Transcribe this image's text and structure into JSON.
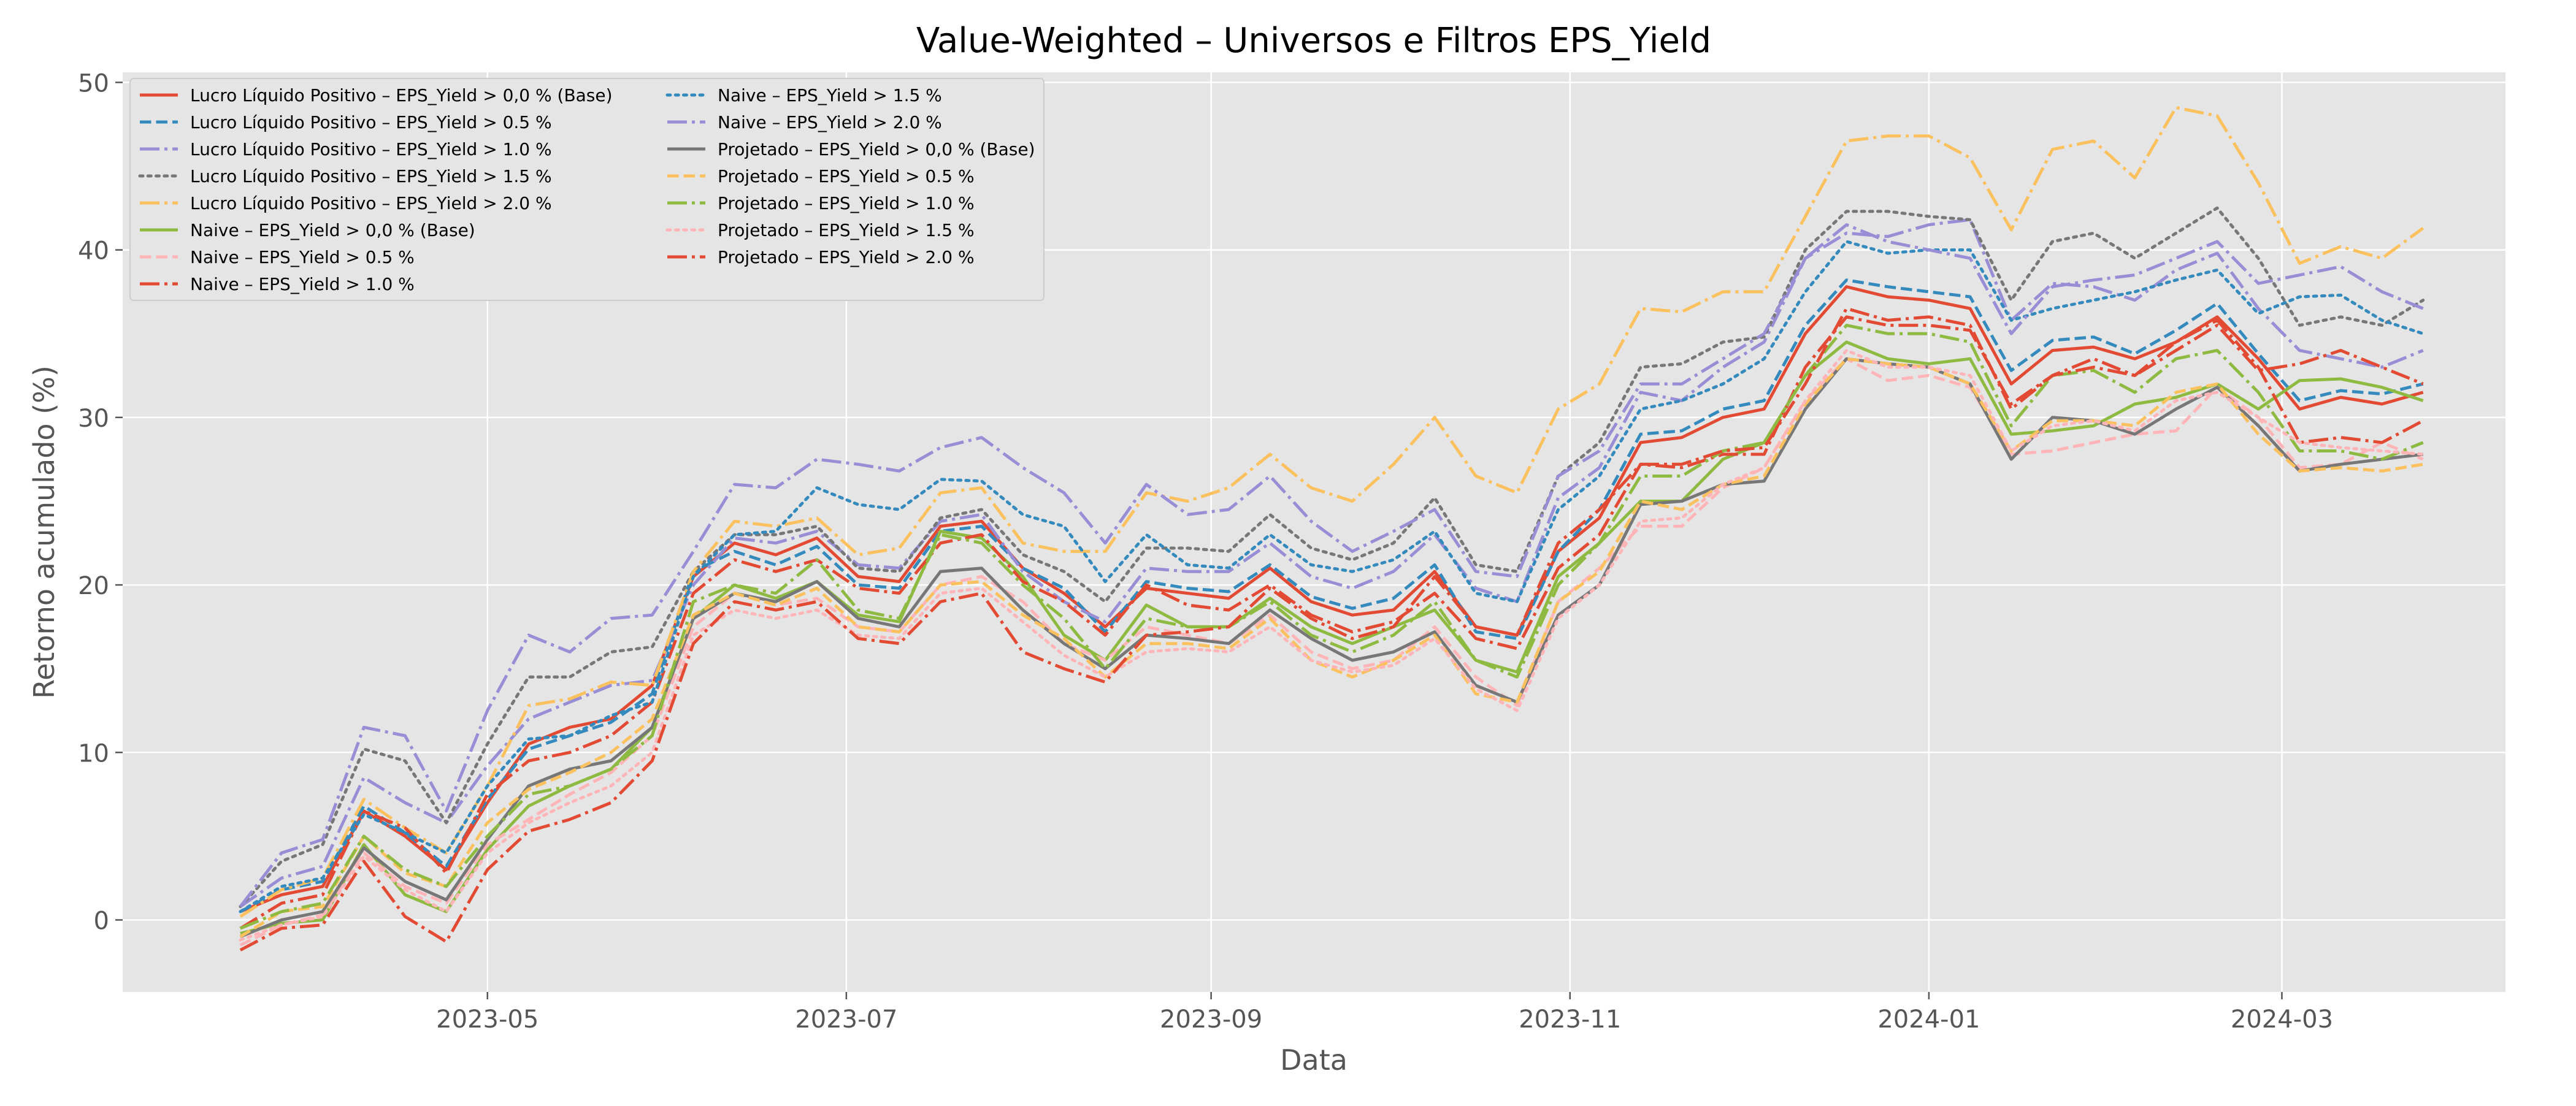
{
  "chart_data": {
    "type": "line",
    "title": "Value-Weighted – Universos e Filtros EPS_Yield",
    "xlabel": "Data",
    "ylabel": "Retorno acumulado (%)",
    "x_tick_labels": [
      "2023-05",
      "2023-07",
      "2023-09",
      "2023-11",
      "2024-01",
      "2024-03"
    ],
    "x_tick_dates": [
      "2023-05-01",
      "2023-07-01",
      "2023-09-01",
      "2023-11-01",
      "2024-01-01",
      "2024-03-01"
    ],
    "y_ticks": [
      0,
      10,
      20,
      30,
      40,
      50
    ],
    "xlim": [
      "2023-02-28",
      "2024-04-08"
    ],
    "ylim": [
      -4.3,
      50.6
    ],
    "grid": true,
    "legend_position": "upper-left",
    "legend_columns": 2,
    "x": [
      "2023-03-20",
      "2023-03-27",
      "2023-04-03",
      "2023-04-10",
      "2023-04-17",
      "2023-04-24",
      "2023-05-01",
      "2023-05-08",
      "2023-05-15",
      "2023-05-22",
      "2023-05-29",
      "2023-06-05",
      "2023-06-12",
      "2023-06-19",
      "2023-06-26",
      "2023-07-03",
      "2023-07-10",
      "2023-07-17",
      "2023-07-24",
      "2023-07-31",
      "2023-08-07",
      "2023-08-14",
      "2023-08-21",
      "2023-08-28",
      "2023-09-04",
      "2023-09-11",
      "2023-09-18",
      "2023-09-25",
      "2023-10-02",
      "2023-10-09",
      "2023-10-16",
      "2023-10-23",
      "2023-10-30",
      "2023-11-06",
      "2023-11-13",
      "2023-11-20",
      "2023-11-27",
      "2023-12-04",
      "2023-12-11",
      "2023-12-18",
      "2023-12-25",
      "2024-01-01",
      "2024-01-08",
      "2024-01-15",
      "2024-01-22",
      "2024-01-29",
      "2024-02-05",
      "2024-02-12",
      "2024-02-19",
      "2024-02-26",
      "2024-03-04",
      "2024-03-11",
      "2024-03-18",
      "2024-03-25"
    ],
    "series": [
      {
        "name": "Lucro Líquido Positivo – EPS_Yield > 0,0 % (Base)",
        "color": "#E24A33",
        "dash": "solid",
        "values": [
          0.5,
          1.5,
          2.0,
          6.5,
          5.0,
          3.0,
          7.0,
          10.5,
          11.5,
          12.0,
          14.0,
          20.5,
          22.5,
          21.8,
          22.8,
          20.5,
          20.2,
          23.5,
          23.8,
          21.0,
          19.5,
          17.5,
          19.8,
          19.5,
          19.2,
          21.0,
          19.0,
          18.2,
          18.5,
          20.8,
          17.5,
          17.0,
          22.0,
          24.0,
          28.5,
          28.8,
          30.0,
          30.5,
          35.0,
          37.8,
          37.2,
          37.0,
          36.5,
          32.0,
          34.0,
          34.2,
          33.5,
          34.5,
          36.0,
          33.5,
          30.5,
          31.2,
          30.8,
          31.5
        ]
      },
      {
        "name": "Lucro Líquido Positivo – EPS_Yield > 0.5 %",
        "color": "#348ABD",
        "dash": "dashed",
        "values": [
          0.5,
          1.8,
          2.3,
          6.8,
          5.2,
          3.2,
          7.2,
          10.2,
          11.0,
          11.8,
          13.5,
          20.8,
          22.0,
          21.2,
          22.3,
          20.0,
          19.8,
          23.2,
          23.5,
          21.0,
          19.8,
          17.2,
          20.2,
          19.8,
          19.6,
          21.2,
          19.3,
          18.6,
          19.2,
          21.2,
          17.2,
          16.8,
          22.0,
          24.5,
          29.0,
          29.2,
          30.5,
          31.0,
          35.5,
          38.2,
          37.8,
          37.5,
          37.2,
          32.8,
          34.6,
          34.8,
          33.8,
          35.2,
          36.8,
          33.8,
          31.0,
          31.6,
          31.4,
          32.0
        ]
      },
      {
        "name": "Lucro Líquido Positivo – EPS_Yield > 1.0 %",
        "color": "#988ED5",
        "dash": "dashdot",
        "values": [
          0.8,
          2.5,
          3.2,
          8.5,
          7.0,
          5.8,
          9.2,
          12.0,
          13.0,
          14.0,
          14.3,
          20.0,
          22.8,
          22.5,
          23.2,
          21.2,
          21.0,
          23.8,
          24.2,
          20.8,
          19.0,
          17.8,
          21.0,
          20.8,
          20.8,
          22.5,
          20.5,
          19.8,
          20.8,
          23.0,
          19.8,
          19.0,
          25.2,
          27.0,
          31.5,
          31.0,
          33.0,
          34.5,
          39.5,
          41.0,
          40.8,
          41.5,
          41.8,
          35.8,
          38.0,
          37.8,
          37.0,
          38.8,
          39.8,
          36.5,
          34.0,
          33.5,
          33.0,
          34.0
        ]
      },
      {
        "name": "Lucro Líquido Positivo – EPS_Yield > 1.5 %",
        "color": "#777777",
        "dash": "dotted",
        "values": [
          0.8,
          3.5,
          4.5,
          10.2,
          9.5,
          5.8,
          10.5,
          14.5,
          14.5,
          16.0,
          16.3,
          20.8,
          23.0,
          23.0,
          23.5,
          21.0,
          20.8,
          24.0,
          24.5,
          21.8,
          20.8,
          19.0,
          22.2,
          22.2,
          22.0,
          24.2,
          22.2,
          21.5,
          22.5,
          25.2,
          21.2,
          20.8,
          26.5,
          28.5,
          33.0,
          33.2,
          34.5,
          34.8,
          40.0,
          42.3,
          42.3,
          42.0,
          41.8,
          37.0,
          40.5,
          41.0,
          39.5,
          41.0,
          42.5,
          39.5,
          35.5,
          36.0,
          35.5,
          37.0
        ]
      },
      {
        "name": "Lucro Líquido Positivo – EPS_Yield > 2.0 %",
        "color": "#FBC15E",
        "dash": "dashdot",
        "values": [
          0.2,
          1.8,
          2.5,
          7.2,
          5.5,
          4.0,
          8.0,
          12.8,
          13.2,
          14.2,
          14.0,
          20.8,
          23.8,
          23.5,
          24.0,
          21.8,
          22.2,
          25.5,
          25.8,
          22.5,
          22.0,
          22.0,
          25.5,
          25.0,
          25.8,
          27.8,
          25.8,
          25.0,
          27.2,
          30.0,
          26.5,
          25.5,
          30.5,
          32.0,
          36.5,
          36.3,
          37.5,
          37.5,
          42.0,
          46.5,
          46.8,
          46.8,
          45.5,
          41.2,
          46.0,
          46.5,
          44.3,
          48.5,
          48.0,
          44.0,
          39.2,
          40.2,
          39.5,
          41.3
        ]
      },
      {
        "name": "Naive – EPS_Yield > 0,0 % (Base)",
        "color": "#8EBA42",
        "dash": "solid",
        "values": [
          -0.8,
          -0.2,
          0.0,
          4.5,
          1.5,
          0.5,
          4.2,
          6.8,
          8.0,
          9.0,
          11.5,
          18.0,
          20.0,
          19.2,
          20.2,
          18.2,
          17.8,
          23.2,
          22.8,
          20.5,
          17.0,
          15.5,
          18.8,
          17.5,
          17.5,
          19.2,
          17.5,
          16.5,
          17.5,
          18.5,
          15.5,
          14.8,
          20.5,
          22.5,
          25.0,
          25.0,
          27.5,
          28.5,
          32.5,
          34.5,
          33.5,
          33.2,
          33.5,
          29.0,
          29.2,
          29.5,
          30.8,
          31.2,
          32.0,
          30.5,
          32.2,
          32.3,
          31.8,
          31.0
        ]
      },
      {
        "name": "Naive – EPS_Yield > 0.5 %",
        "color": "#FFB5B8",
        "dash": "dashed",
        "values": [
          -1.5,
          -0.3,
          0.3,
          4.0,
          2.0,
          1.0,
          4.5,
          6.0,
          7.5,
          8.8,
          11.0,
          17.5,
          19.5,
          18.8,
          19.2,
          17.5,
          17.2,
          20.0,
          20.5,
          19.0,
          16.5,
          15.5,
          17.5,
          17.0,
          16.5,
          18.2,
          16.0,
          15.0,
          15.5,
          17.5,
          14.5,
          12.8,
          19.0,
          21.0,
          23.5,
          23.5,
          25.8,
          27.0,
          31.0,
          33.5,
          32.2,
          32.5,
          31.8,
          27.8,
          28.0,
          28.5,
          29.0,
          29.2,
          31.8,
          30.0,
          27.0,
          27.2,
          28.5,
          27.5
        ]
      },
      {
        "name": "Naive – EPS_Yield > 1.0 %",
        "color": "#E24A33",
        "dash": "dashdot",
        "values": [
          -0.5,
          1.0,
          1.5,
          6.5,
          5.5,
          2.8,
          7.5,
          9.5,
          10.0,
          11.0,
          13.0,
          19.5,
          21.5,
          20.8,
          21.5,
          19.8,
          19.5,
          22.5,
          23.0,
          20.2,
          19.0,
          17.0,
          20.0,
          18.8,
          18.5,
          20.0,
          18.2,
          17.2,
          17.8,
          19.5,
          16.8,
          16.2,
          21.0,
          23.0,
          27.2,
          27.0,
          27.8,
          27.8,
          33.0,
          36.0,
          35.5,
          35.5,
          35.2,
          30.8,
          32.5,
          33.5,
          32.5,
          34.5,
          35.8,
          33.0,
          28.5,
          28.8,
          28.5,
          29.8
        ]
      },
      {
        "name": "Naive – EPS_Yield > 1.5 %",
        "color": "#348ABD",
        "dash": "dotted",
        "values": [
          0.5,
          2.0,
          2.5,
          6.3,
          5.2,
          4.0,
          8.0,
          10.8,
          11.0,
          12.2,
          13.0,
          20.5,
          23.0,
          23.2,
          25.8,
          24.8,
          24.5,
          26.3,
          26.2,
          24.2,
          23.5,
          20.2,
          23.0,
          21.2,
          21.0,
          23.0,
          21.2,
          20.8,
          21.5,
          23.2,
          19.5,
          19.0,
          24.5,
          26.5,
          30.5,
          31.0,
          32.0,
          33.5,
          37.5,
          40.5,
          39.8,
          40.0,
          40.0,
          35.8,
          36.5,
          37.0,
          37.5,
          38.2,
          38.8,
          36.2,
          37.2,
          37.3,
          35.8,
          35.0
        ]
      },
      {
        "name": "Naive – EPS_Yield > 2.0 %",
        "color": "#988ED5",
        "dash": "dashdot",
        "values": [
          0.8,
          4.0,
          4.8,
          11.5,
          11.0,
          6.5,
          12.5,
          17.0,
          16.0,
          18.0,
          18.2,
          22.0,
          26.0,
          25.8,
          27.5,
          27.2,
          26.8,
          28.2,
          28.8,
          27.0,
          25.5,
          22.5,
          26.0,
          24.2,
          24.5,
          26.5,
          23.8,
          22.0,
          23.2,
          24.5,
          20.8,
          20.5,
          26.5,
          28.0,
          32.0,
          32.0,
          33.5,
          35.0,
          39.5,
          41.5,
          40.5,
          40.0,
          39.5,
          35.0,
          37.8,
          38.2,
          38.5,
          39.5,
          40.5,
          38.0,
          38.5,
          39.0,
          37.5,
          36.5
        ]
      },
      {
        "name": "Projetado – EPS_Yield > 0,0 % (Base)",
        "color": "#777777",
        "dash": "solid",
        "values": [
          -1.0,
          0.0,
          0.5,
          4.3,
          2.3,
          1.2,
          4.8,
          8.0,
          9.0,
          9.5,
          11.5,
          18.0,
          19.5,
          19.0,
          20.2,
          18.0,
          17.5,
          20.8,
          21.0,
          18.5,
          16.5,
          15.0,
          17.0,
          16.8,
          16.5,
          18.5,
          16.8,
          15.5,
          16.0,
          17.2,
          14.0,
          13.0,
          18.2,
          20.0,
          24.8,
          25.0,
          26.0,
          26.2,
          30.5,
          33.5,
          33.2,
          33.0,
          32.0,
          27.5,
          30.0,
          29.8,
          29.0,
          30.5,
          31.8,
          29.5,
          26.8,
          27.2,
          27.5,
          27.8
        ]
      },
      {
        "name": "Projetado – EPS_Yield > 0.5 %",
        "color": "#FBC15E",
        "dash": "dashed",
        "values": [
          -1.0,
          0.5,
          0.8,
          5.0,
          2.8,
          2.0,
          5.8,
          7.8,
          8.8,
          10.0,
          12.0,
          18.2,
          19.5,
          18.8,
          19.8,
          17.5,
          17.2,
          20.0,
          20.2,
          18.2,
          16.8,
          14.5,
          16.5,
          16.5,
          16.2,
          18.0,
          15.5,
          14.5,
          15.5,
          17.0,
          13.5,
          13.0,
          19.0,
          20.8,
          25.0,
          24.5,
          26.0,
          26.5,
          30.8,
          33.5,
          33.2,
          33.0,
          32.0,
          28.0,
          29.8,
          29.8,
          29.5,
          31.5,
          32.0,
          29.0,
          26.8,
          27.0,
          26.8,
          27.2
        ]
      },
      {
        "name": "Projetado – EPS_Yield > 1.0 %",
        "color": "#8EBA42",
        "dash": "dashdot",
        "values": [
          -0.5,
          0.5,
          1.0,
          5.0,
          3.0,
          2.0,
          5.0,
          7.5,
          8.0,
          9.0,
          11.0,
          19.0,
          20.0,
          19.5,
          21.5,
          18.5,
          18.0,
          23.0,
          22.5,
          20.0,
          18.0,
          15.0,
          18.0,
          17.5,
          17.5,
          19.0,
          17.0,
          16.0,
          17.0,
          19.0,
          15.5,
          14.5,
          20.0,
          22.5,
          26.5,
          26.5,
          28.0,
          28.5,
          32.5,
          35.5,
          35.0,
          35.0,
          34.5,
          29.5,
          32.5,
          32.8,
          31.5,
          33.5,
          34.0,
          31.5,
          28.0,
          28.0,
          27.5,
          28.5
        ]
      },
      {
        "name": "Projetado – EPS_Yield > 1.5 %",
        "color": "#FFB5B8",
        "dash": "dotted",
        "values": [
          -1.2,
          -0.3,
          0.2,
          3.8,
          1.8,
          0.5,
          4.0,
          5.8,
          7.0,
          8.0,
          10.0,
          17.0,
          18.5,
          18.0,
          18.5,
          17.0,
          16.8,
          19.5,
          19.8,
          17.8,
          15.8,
          14.5,
          16.0,
          16.2,
          16.0,
          17.5,
          15.5,
          14.8,
          15.2,
          16.8,
          13.8,
          12.5,
          18.0,
          20.0,
          23.8,
          24.0,
          26.0,
          27.0,
          31.0,
          34.0,
          33.0,
          33.0,
          32.5,
          28.0,
          29.5,
          29.8,
          29.2,
          31.0,
          31.5,
          30.0,
          28.5,
          28.2,
          28.0,
          27.8
        ]
      },
      {
        "name": "Projetado – EPS_Yield > 2.0 %",
        "color": "#E24A33",
        "dash": "dashdot",
        "values": [
          -1.8,
          -0.5,
          -0.3,
          3.5,
          0.2,
          -1.3,
          3.0,
          5.3,
          6.0,
          7.0,
          9.5,
          16.5,
          19.0,
          18.5,
          19.0,
          16.8,
          16.5,
          19.0,
          19.5,
          16.0,
          15.0,
          14.2,
          17.0,
          17.2,
          17.5,
          19.8,
          18.0,
          16.8,
          17.5,
          20.5,
          17.5,
          17.0,
          22.5,
          24.5,
          27.2,
          27.2,
          28.0,
          28.2,
          32.0,
          36.5,
          35.8,
          36.0,
          35.5,
          30.5,
          32.5,
          33.0,
          32.5,
          34.0,
          35.5,
          32.8,
          33.2,
          34.0,
          33.0,
          32.0
        ]
      }
    ]
  }
}
